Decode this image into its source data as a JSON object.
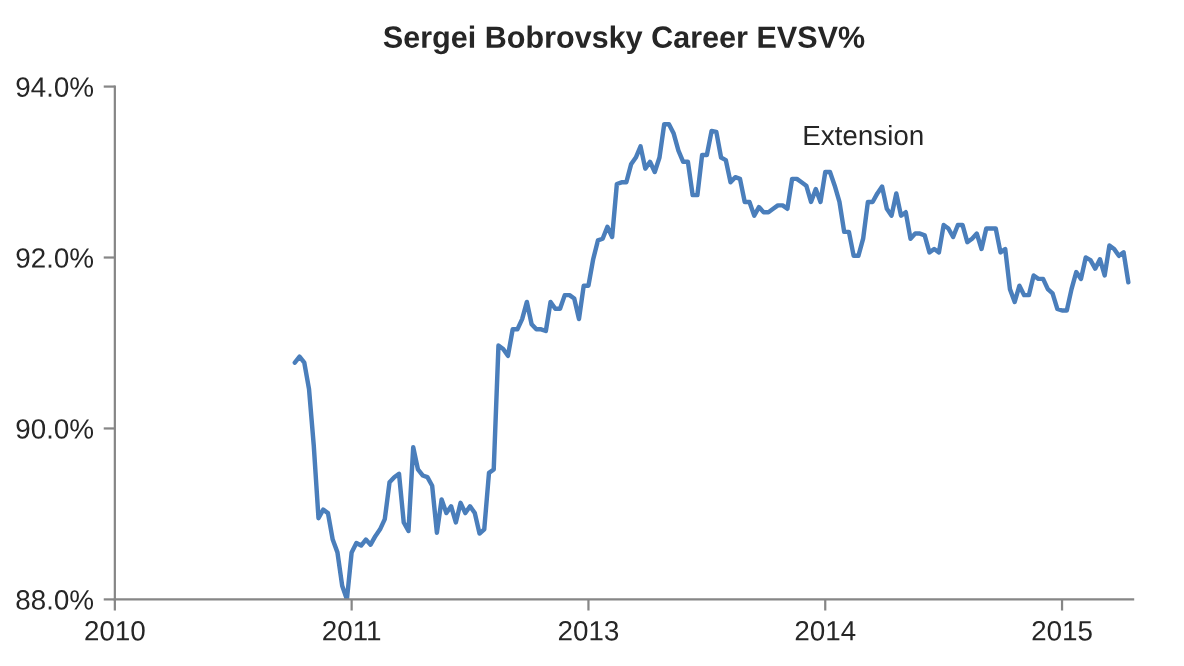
{
  "chart_data": {
    "type": "line",
    "title": "Sergei Bobrovsky Career EVSV%",
    "categories": [
      "2010",
      null,
      null,
      null,
      null,
      null,
      null,
      null,
      null,
      null,
      null,
      null,
      null,
      null,
      null,
      null,
      null,
      null,
      null,
      null,
      null,
      null,
      null,
      null,
      null,
      null,
      null,
      null,
      null,
      null,
      null,
      null,
      null,
      null,
      null,
      null,
      null,
      null,
      null,
      null,
      null,
      null,
      null,
      null,
      null,
      null,
      null,
      null,
      null,
      null,
      "2011",
      null,
      null,
      null,
      null,
      null,
      null,
      null,
      null,
      null,
      null,
      null,
      null,
      null,
      null,
      null,
      null,
      null,
      null,
      null,
      null,
      null,
      null,
      null,
      null,
      null,
      null,
      null,
      null,
      null,
      null,
      null,
      null,
      null,
      null,
      null,
      null,
      null,
      null,
      null,
      null,
      null,
      null,
      null,
      null,
      null,
      null,
      null,
      null,
      null,
      "2013",
      null,
      null,
      null,
      null,
      null,
      null,
      null,
      null,
      null,
      null,
      null,
      null,
      null,
      null,
      null,
      null,
      null,
      null,
      null,
      null,
      null,
      null,
      null,
      null,
      null,
      null,
      null,
      null,
      null,
      null,
      null,
      null,
      null,
      null,
      null,
      null,
      null,
      null,
      null,
      null,
      null,
      null,
      null,
      null,
      null,
      null,
      null,
      null,
      null,
      "2014",
      null,
      null,
      null,
      null,
      null,
      null,
      null,
      null,
      null,
      null,
      null,
      null,
      null,
      null,
      null,
      null,
      null,
      null,
      null,
      null,
      null,
      null,
      null,
      null,
      null,
      null,
      null,
      null,
      null,
      null,
      null,
      null,
      null,
      null,
      null,
      null,
      null,
      null,
      null,
      null,
      null,
      null,
      null,
      null,
      null,
      null,
      null,
      null,
      null,
      "2015",
      null,
      null,
      null,
      null,
      null,
      null,
      null,
      null,
      null,
      null,
      null,
      null,
      null,
      null
    ],
    "ylim": [
      88,
      94
    ],
    "yticks": [
      {
        "value": 88,
        "label": "88.0%"
      },
      {
        "value": 90,
        "label": "90.0%"
      },
      {
        "value": 92,
        "label": "92.0%"
      },
      {
        "value": 94,
        "label": "94.0%"
      }
    ],
    "annotations": [
      "Extension"
    ],
    "series": [
      {
        "color": "#4a7ebb",
        "values": [
          null,
          null,
          null,
          null,
          null,
          null,
          null,
          null,
          null,
          null,
          null,
          null,
          null,
          null,
          null,
          null,
          null,
          null,
          null,
          null,
          null,
          null,
          null,
          null,
          null,
          null,
          null,
          null,
          null,
          null,
          null,
          null,
          null,
          null,
          null,
          null,
          null,
          null,
          90.77,
          90.84,
          90.77,
          90.46,
          89.8,
          88.95,
          89.05,
          89.01,
          88.7,
          88.55,
          88.16,
          88.0,
          88.55,
          88.66,
          88.63,
          88.7,
          88.64,
          88.74,
          88.82,
          88.94,
          89.37,
          89.43,
          89.47,
          88.9,
          88.8,
          89.78,
          89.52,
          89.45,
          89.43,
          89.33,
          88.78,
          89.17,
          89.01,
          89.09,
          88.9,
          89.13,
          89.01,
          89.09,
          89.01,
          88.77,
          88.82,
          89.48,
          89.52,
          90.97,
          90.93,
          90.85,
          91.16,
          91.16,
          91.28,
          91.48,
          91.22,
          91.16,
          91.16,
          91.14,
          91.48,
          91.4,
          91.4,
          91.56,
          91.56,
          91.52,
          91.28,
          91.67,
          91.67,
          91.98,
          92.2,
          92.22,
          92.36,
          92.24,
          92.86,
          92.88,
          92.88,
          93.09,
          93.17,
          93.3,
          93.04,
          93.12,
          93.0,
          93.17,
          93.56,
          93.56,
          93.45,
          93.25,
          93.12,
          93.12,
          92.73,
          92.73,
          93.2,
          93.2,
          93.48,
          93.47,
          93.17,
          93.14,
          92.88,
          92.94,
          92.92,
          92.65,
          92.65,
          92.49,
          92.59,
          92.53,
          92.53,
          92.57,
          92.61,
          92.61,
          92.57,
          92.92,
          92.92,
          92.88,
          92.84,
          92.65,
          92.8,
          92.65,
          93.0,
          93.0,
          92.84,
          92.65,
          92.3,
          92.3,
          92.02,
          92.02,
          92.22,
          92.65,
          92.65,
          92.75,
          92.83,
          92.57,
          92.49,
          92.75,
          92.49,
          92.53,
          92.22,
          92.28,
          92.28,
          92.26,
          92.06,
          92.1,
          92.06,
          92.38,
          92.34,
          92.24,
          92.38,
          92.38,
          92.18,
          92.22,
          92.28,
          92.1,
          92.34,
          92.34,
          92.34,
          92.06,
          92.1,
          91.63,
          91.48,
          91.67,
          91.56,
          91.56,
          91.79,
          91.75,
          91.75,
          91.63,
          91.58,
          91.4,
          91.38,
          91.38,
          91.63,
          91.83,
          91.75,
          92.0,
          91.97,
          91.87,
          91.98,
          91.79,
          92.14,
          92.1,
          92.02,
          92.06,
          91.71
        ]
      }
    ]
  }
}
